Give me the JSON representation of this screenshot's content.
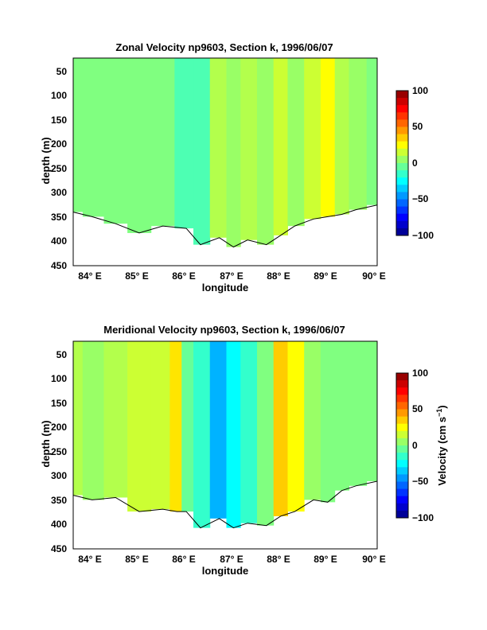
{
  "chart_data": [
    {
      "type": "heatmap",
      "title": "Zonal Velocity np9603, Section k, 1996/06/07",
      "xlabel": "longitude",
      "ylabel": "depth (m)",
      "colorbar_label": "",
      "x_tick_labels": [
        "84° E",
        "85° E",
        "86° E",
        "87° E",
        "88° E",
        "89° E",
        "90° E"
      ],
      "y_tick_labels": [
        "50",
        "100",
        "150",
        "200",
        "250",
        "300",
        "350",
        "400",
        "450"
      ],
      "colorbar_tick_labels": [
        "100",
        "50",
        "0",
        "−50",
        "−100"
      ],
      "xlim": [
        83.6,
        90.05
      ],
      "ylim": [
        20,
        465
      ],
      "clim": [
        -100,
        100
      ],
      "contour_interval": 10,
      "x": [
        83.6,
        84.0,
        84.5,
        85.0,
        85.5,
        86.0,
        86.3,
        86.7,
        87.0,
        87.3,
        87.7,
        88.0,
        88.3,
        88.7,
        89.0,
        89.3,
        89.6,
        90.05
      ],
      "columns": [
        {
          "x": 83.6,
          "velocity": 0,
          "bottom_depth": 350
        },
        {
          "x": 84.0,
          "velocity": 0,
          "bottom_depth": 360
        },
        {
          "x": 84.5,
          "velocity": 0,
          "bottom_depth": 375
        },
        {
          "x": 85.0,
          "velocity": 0,
          "bottom_depth": 395
        },
        {
          "x": 85.5,
          "velocity": 0,
          "bottom_depth": 380
        },
        {
          "x": 86.0,
          "velocity": -10,
          "bottom_depth": 385
        },
        {
          "x": 86.3,
          "velocity": -10,
          "bottom_depth": 420
        },
        {
          "x": 86.7,
          "velocity": 10,
          "bottom_depth": 405
        },
        {
          "x": 87.0,
          "velocity": 5,
          "bottom_depth": 425
        },
        {
          "x": 87.3,
          "velocity": 10,
          "bottom_depth": 410
        },
        {
          "x": 87.7,
          "velocity": 5,
          "bottom_depth": 420
        },
        {
          "x": 88.0,
          "velocity": 15,
          "bottom_depth": 400
        },
        {
          "x": 88.3,
          "velocity": 5,
          "bottom_depth": 380
        },
        {
          "x": 88.7,
          "velocity": 15,
          "bottom_depth": 365
        },
        {
          "x": 89.0,
          "velocity": 25,
          "bottom_depth": 360
        },
        {
          "x": 89.3,
          "velocity": 10,
          "bottom_depth": 355
        },
        {
          "x": 89.6,
          "velocity": 5,
          "bottom_depth": 345
        },
        {
          "x": 90.05,
          "velocity": 0,
          "bottom_depth": 335
        }
      ]
    },
    {
      "type": "heatmap",
      "title": "Meridional Velocity np9603, Section k, 1996/06/07",
      "xlabel": "longitude",
      "ylabel": "depth (m)",
      "colorbar_label": "Velocity (cm s",
      "colorbar_label_sup": "−1",
      "colorbar_label_tail": ")",
      "x_tick_labels": [
        "84° E",
        "85° E",
        "86° E",
        "87° E",
        "88° E",
        "89° E",
        "90° E"
      ],
      "y_tick_labels": [
        "50",
        "100",
        "150",
        "200",
        "250",
        "300",
        "350",
        "400",
        "450"
      ],
      "colorbar_tick_labels": [
        "100",
        "50",
        "0",
        "−50",
        "−100"
      ],
      "xlim": [
        83.6,
        90.05
      ],
      "ylim": [
        20,
        465
      ],
      "clim": [
        -100,
        100
      ],
      "contour_interval": 10,
      "x": [
        83.6,
        84.0,
        84.5,
        85.0,
        85.5,
        85.8,
        86.0,
        86.3,
        86.7,
        87.0,
        87.3,
        87.7,
        88.0,
        88.3,
        88.7,
        89.0,
        89.3,
        89.6,
        90.05
      ],
      "columns": [
        {
          "x": 83.6,
          "velocity": 10,
          "bottom_depth": 350
        },
        {
          "x": 84.0,
          "velocity": 5,
          "bottom_depth": 360
        },
        {
          "x": 84.5,
          "velocity": 10,
          "bottom_depth": 355
        },
        {
          "x": 85.0,
          "velocity": 15,
          "bottom_depth": 385
        },
        {
          "x": 85.5,
          "velocity": 15,
          "bottom_depth": 380
        },
        {
          "x": 85.8,
          "velocity": 30,
          "bottom_depth": 385
        },
        {
          "x": 86.0,
          "velocity": -5,
          "bottom_depth": 385
        },
        {
          "x": 86.3,
          "velocity": -15,
          "bottom_depth": 420
        },
        {
          "x": 86.7,
          "velocity": -40,
          "bottom_depth": 400
        },
        {
          "x": 87.0,
          "velocity": -25,
          "bottom_depth": 420
        },
        {
          "x": 87.3,
          "velocity": -15,
          "bottom_depth": 410
        },
        {
          "x": 87.7,
          "velocity": 0,
          "bottom_depth": 415
        },
        {
          "x": 88.0,
          "velocity": 35,
          "bottom_depth": 395
        },
        {
          "x": 88.3,
          "velocity": 25,
          "bottom_depth": 385
        },
        {
          "x": 88.7,
          "velocity": 5,
          "bottom_depth": 360
        },
        {
          "x": 89.0,
          "velocity": 0,
          "bottom_depth": 365
        },
        {
          "x": 89.3,
          "velocity": 0,
          "bottom_depth": 340
        },
        {
          "x": 89.6,
          "velocity": 0,
          "bottom_depth": 330
        },
        {
          "x": 90.05,
          "velocity": 0,
          "bottom_depth": 320
        }
      ]
    }
  ]
}
